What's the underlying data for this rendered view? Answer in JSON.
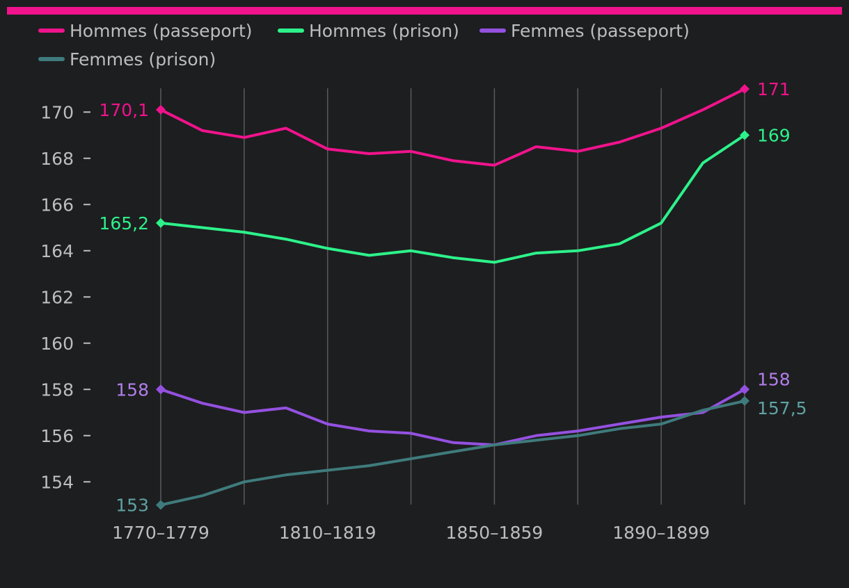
{
  "colors": {
    "background": "#1d1e20",
    "top_bar": "#f0138c",
    "grid": "#5a5a5c",
    "text": "#bdbdbd"
  },
  "chart_data": {
    "type": "line",
    "title": "",
    "xlabel": "",
    "ylabel": "",
    "ylim": [
      153,
      171
    ],
    "y_ticks": [
      154,
      156,
      158,
      160,
      162,
      164,
      166,
      168,
      170
    ],
    "x": [
      1775,
      1785,
      1795,
      1805,
      1815,
      1825,
      1835,
      1845,
      1855,
      1865,
      1875,
      1885,
      1895,
      1905,
      1915
    ],
    "x_tick_labels": [
      {
        "x": 1775,
        "label": "1770–1779"
      },
      {
        "x": 1815,
        "label": "1810–1819"
      },
      {
        "x": 1855,
        "label": "1850–1859"
      },
      {
        "x": 1895,
        "label": "1890–1899"
      }
    ],
    "series": [
      {
        "name": "Hommes (passeport)",
        "color": "#f0138c",
        "values": [
          170.1,
          169.2,
          168.9,
          169.3,
          168.4,
          168.2,
          168.3,
          167.9,
          167.7,
          168.5,
          168.3,
          168.7,
          169.3,
          170.1,
          171
        ],
        "start_label": "170,1",
        "end_label": "171"
      },
      {
        "name": "Hommes (prison)",
        "color": "#2df28a",
        "values": [
          165.2,
          165.0,
          164.8,
          164.5,
          164.1,
          163.8,
          164.0,
          163.7,
          163.5,
          163.9,
          164.0,
          164.3,
          165.2,
          167.8,
          169
        ],
        "start_label": "165,2",
        "end_label": "169"
      },
      {
        "name": "Femmes (passeport)",
        "color": "#9451e0",
        "values": [
          158,
          157.4,
          157.0,
          157.2,
          156.5,
          156.2,
          156.1,
          155.7,
          155.6,
          156.0,
          156.2,
          156.5,
          156.8,
          157.0,
          158
        ],
        "start_label": "158",
        "end_label": "158",
        "label_color": "#b07ee8"
      },
      {
        "name": "Femmes (prison)",
        "color": "#3f7b7c",
        "values": [
          153,
          153.4,
          154.0,
          154.3,
          154.5,
          154.7,
          155.0,
          155.3,
          155.6,
          155.8,
          156.0,
          156.3,
          156.5,
          157.1,
          157.5
        ],
        "start_label": "153",
        "end_label": "157,5",
        "label_color": "#5fa2a2"
      }
    ]
  }
}
